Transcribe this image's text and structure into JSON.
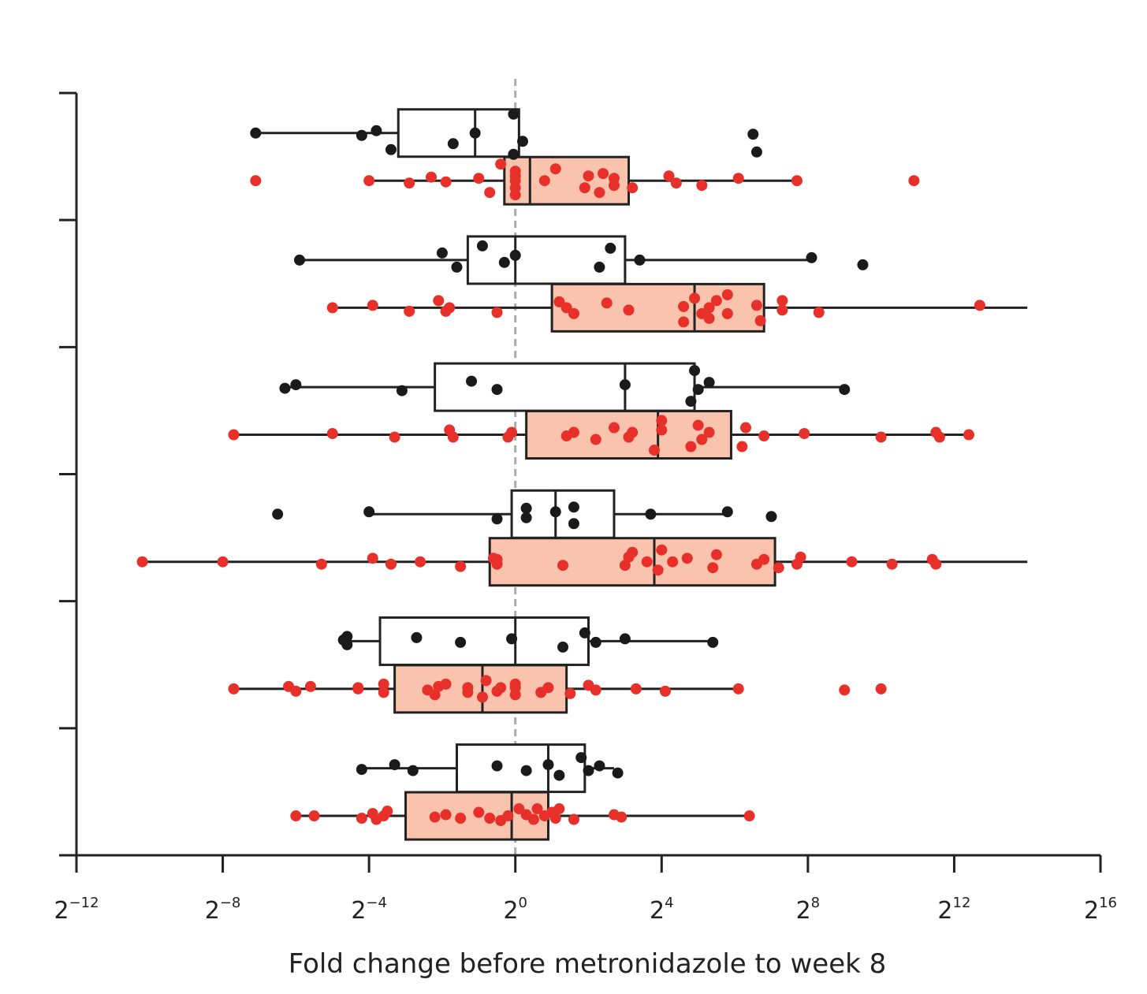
{
  "chart_data": {
    "type": "boxplot",
    "orientation": "horizontal",
    "title": "",
    "xlabel": "Fold change before metronidazole to week 8",
    "ylabel": "",
    "x_scale": "log2",
    "xlim_exp": [
      -12,
      16
    ],
    "x_ticks": [
      {
        "base": "2",
        "exp": "−12",
        "value_exp": -12
      },
      {
        "base": "2",
        "exp": "−8",
        "value_exp": -8
      },
      {
        "base": "2",
        "exp": "−4",
        "value_exp": -4
      },
      {
        "base": "2",
        "exp": "0",
        "value_exp": 0
      },
      {
        "base": "2",
        "exp": "4",
        "value_exp": 4
      },
      {
        "base": "2",
        "exp": "8",
        "value_exp": 8
      },
      {
        "base": "2",
        "exp": "12",
        "value_exp": 12
      },
      {
        "base": "2",
        "exp": "16",
        "value_exp": 16
      }
    ],
    "y_tick_count": 7,
    "reference_line_exp": 0,
    "colors": {
      "black_group": "#1a1a1a",
      "red_group": "#e8302a",
      "red_box_fill": "#f9c3ad",
      "ref_line": "#aaaaaa",
      "axis": "#222222"
    },
    "groups": [
      {
        "black": {
          "box": {
            "whisker_lo": -7.1,
            "q1": -3.2,
            "median": -1.1,
            "q3": 0.1,
            "whisker_hi": 0.1
          },
          "points": [
            [
              -7.1,
              0
            ],
            [
              -4.2,
              0.1
            ],
            [
              -3.8,
              -0.1
            ],
            [
              -3.4,
              0.7
            ],
            [
              -1.7,
              0.45
            ],
            [
              -1.1,
              0.0
            ],
            [
              -0.05,
              0.9
            ],
            [
              0.2,
              0.35
            ],
            [
              -0.05,
              -0.8
            ],
            [
              6.6,
              0.8
            ],
            [
              6.5,
              0.05
            ]
          ]
        },
        "red": {
          "box": {
            "whisker_lo": -4.0,
            "q1": -0.3,
            "median": 0.4,
            "q3": 3.1,
            "whisker_hi": 7.7
          },
          "points": [
            [
              -7.1,
              0
            ],
            [
              -4.0,
              0
            ],
            [
              -2.9,
              0.1
            ],
            [
              -2.3,
              -0.15
            ],
            [
              -1.9,
              0.05
            ],
            [
              -1.0,
              -0.1
            ],
            [
              -0.7,
              0.5
            ],
            [
              -0.4,
              -0.7
            ],
            [
              0,
              0.6
            ],
            [
              0,
              0.3
            ],
            [
              0,
              0.0
            ],
            [
              0,
              -0.2
            ],
            [
              0,
              -0.4
            ],
            [
              0.8,
              0.0
            ],
            [
              1.1,
              -0.5
            ],
            [
              1.9,
              0.3
            ],
            [
              2.0,
              -0.2
            ],
            [
              2.3,
              0.5
            ],
            [
              2.4,
              -0.3
            ],
            [
              2.7,
              -0.1
            ],
            [
              2.7,
              0.2
            ],
            [
              3.2,
              0.3
            ],
            [
              4.2,
              -0.2
            ],
            [
              4.4,
              0.1
            ],
            [
              5.1,
              0.2
            ],
            [
              6.1,
              -0.1
            ],
            [
              7.7,
              0.0
            ],
            [
              10.9,
              0.0
            ]
          ]
        }
      },
      {
        "black": {
          "box": {
            "whisker_lo": -5.9,
            "q1": -1.3,
            "median": 0,
            "q3": 3.0,
            "whisker_hi": 8.1
          },
          "points": [
            [
              -5.9,
              0
            ],
            [
              -2.0,
              -0.3
            ],
            [
              -1.6,
              0.3
            ],
            [
              -0.9,
              -0.6
            ],
            [
              -0.3,
              0.1
            ],
            [
              0.0,
              -0.2
            ],
            [
              2.3,
              0.3
            ],
            [
              2.6,
              -0.5
            ],
            [
              3.4,
              0.0
            ],
            [
              8.1,
              -0.1
            ],
            [
              9.5,
              0.2
            ]
          ]
        },
        "red": {
          "box": {
            "whisker_lo": -5.0,
            "q1": 1.0,
            "median": 4.9,
            "q3": 6.8,
            "whisker_hi": 14.0
          },
          "points": [
            [
              -5.0,
              0
            ],
            [
              -3.9,
              -0.1
            ],
            [
              -2.9,
              0.15
            ],
            [
              -2.1,
              -0.3
            ],
            [
              -1.8,
              0.0
            ],
            [
              -1.9,
              0.15
            ],
            [
              -0.5,
              0.2
            ],
            [
              1.2,
              -0.25
            ],
            [
              1.4,
              0.0
            ],
            [
              1.6,
              0.25
            ],
            [
              2.5,
              -0.2
            ],
            [
              3.1,
              0.1
            ],
            [
              4.6,
              0.6
            ],
            [
              4.6,
              -0.05
            ],
            [
              4.9,
              -0.4
            ],
            [
              5.1,
              0.25
            ],
            [
              5.3,
              0.0
            ],
            [
              5.5,
              -0.3
            ],
            [
              5.3,
              0.45
            ],
            [
              5.8,
              0.25
            ],
            [
              5.8,
              -0.55
            ],
            [
              6.7,
              0.55
            ],
            [
              6.6,
              -0.1
            ],
            [
              7.3,
              0.1
            ],
            [
              7.3,
              -0.3
            ],
            [
              8.3,
              0.2
            ],
            [
              12.7,
              -0.1
            ]
          ]
        }
      },
      {
        "black": {
          "box": {
            "whisker_lo": -6.3,
            "q1": -2.2,
            "median": 3.0,
            "q3": 4.9,
            "whisker_hi": 9.0
          },
          "points": [
            [
              -6.3,
              0.05
            ],
            [
              -6.0,
              -0.1
            ],
            [
              -3.1,
              0.15
            ],
            [
              -1.2,
              -0.25
            ],
            [
              -0.5,
              0.1
            ],
            [
              3.0,
              -0.1
            ],
            [
              4.8,
              0.6
            ],
            [
              5.0,
              0.1
            ],
            [
              5.3,
              -0.2
            ],
            [
              4.9,
              -0.7
            ],
            [
              9.0,
              0.1
            ]
          ]
        },
        "red": {
          "box": {
            "whisker_lo": -7.7,
            "q1": 0.3,
            "median": 3.9,
            "q3": 5.9,
            "whisker_hi": 12.4
          },
          "points": [
            [
              -7.7,
              0
            ],
            [
              -5.0,
              -0.05
            ],
            [
              -3.3,
              0.1
            ],
            [
              -1.7,
              0.1
            ],
            [
              -1.8,
              -0.2
            ],
            [
              -0.2,
              0.1
            ],
            [
              -0.1,
              -0.1
            ],
            [
              1.4,
              0.05
            ],
            [
              1.6,
              -0.1
            ],
            [
              2.2,
              0.2
            ],
            [
              2.7,
              -0.3
            ],
            [
              3.1,
              0.1
            ],
            [
              3.2,
              -0.1
            ],
            [
              3.8,
              0.65
            ],
            [
              4.0,
              -0.2
            ],
            [
              4.0,
              -0.6
            ],
            [
              4.8,
              0.5
            ],
            [
              5.1,
              0.2
            ],
            [
              5.3,
              -0.1
            ],
            [
              5.0,
              -0.4
            ],
            [
              6.2,
              0.5
            ],
            [
              6.8,
              0.05
            ],
            [
              6.3,
              -0.3
            ],
            [
              7.9,
              -0.05
            ],
            [
              10.0,
              0.1
            ],
            [
              11.5,
              -0.1
            ],
            [
              11.6,
              0.1
            ],
            [
              12.4,
              0.0
            ]
          ]
        }
      },
      {
        "black": {
          "box": {
            "whisker_lo": -4.0,
            "q1": -0.1,
            "median": 1.1,
            "q3": 2.7,
            "whisker_hi": 5.8
          },
          "points": [
            [
              -6.5,
              0
            ],
            [
              -4.0,
              -0.1
            ],
            [
              -0.5,
              0.2
            ],
            [
              0.3,
              -0.25
            ],
            [
              0.3,
              0.15
            ],
            [
              1.1,
              -0.1
            ],
            [
              1.6,
              0.4
            ],
            [
              1.6,
              -0.3
            ],
            [
              3.7,
              0.0
            ],
            [
              5.8,
              -0.1
            ],
            [
              7.0,
              0.1
            ]
          ]
        },
        "red": {
          "box": {
            "whisker_lo": -10.2,
            "q1": -0.7,
            "median": 3.8,
            "q3": 7.1,
            "whisker_hi": 14.0
          },
          "points": [
            [
              -10.2,
              0
            ],
            [
              -8.0,
              0
            ],
            [
              -5.3,
              0.1
            ],
            [
              -3.9,
              -0.15
            ],
            [
              -3.4,
              0.1
            ],
            [
              -2.6,
              0.0
            ],
            [
              -1.5,
              0.2
            ],
            [
              -0.5,
              0.1
            ],
            [
              -0.5,
              -0.1
            ],
            [
              -0.6,
              -0.15
            ],
            [
              1.3,
              0.15
            ],
            [
              3.0,
              0.15
            ],
            [
              3.1,
              -0.2
            ],
            [
              3.2,
              -0.4
            ],
            [
              3.6,
              0.0
            ],
            [
              3.9,
              0.35
            ],
            [
              4.0,
              -0.5
            ],
            [
              4.3,
              0.0
            ],
            [
              4.7,
              -0.15
            ],
            [
              5.4,
              0.25
            ],
            [
              5.5,
              -0.3
            ],
            [
              6.6,
              0.1
            ],
            [
              6.8,
              -0.1
            ],
            [
              7.2,
              0.25
            ],
            [
              7.7,
              0.1
            ],
            [
              7.8,
              -0.2
            ],
            [
              9.2,
              0.0
            ],
            [
              10.3,
              0.1
            ],
            [
              11.4,
              -0.1
            ],
            [
              11.5,
              0.1
            ]
          ]
        }
      },
      {
        "black": {
          "box": {
            "whisker_lo": -4.6,
            "q1": -3.7,
            "median": 0,
            "q3": 2.0,
            "whisker_hi": 5.4
          },
          "points": [
            [
              -4.6,
              0.15
            ],
            [
              -4.7,
              -0.05
            ],
            [
              -4.6,
              -0.2
            ],
            [
              -2.7,
              -0.15
            ],
            [
              -1.5,
              0.05
            ],
            [
              -0.1,
              -0.1
            ],
            [
              1.3,
              0.25
            ],
            [
              2.2,
              0.05
            ],
            [
              1.9,
              -0.35
            ],
            [
              3.0,
              -0.1
            ],
            [
              5.4,
              0.05
            ]
          ]
        },
        "red": {
          "box": {
            "whisker_lo": -7.7,
            "q1": -3.3,
            "median": -0.9,
            "q3": 1.4,
            "whisker_hi": 6.1
          },
          "points": [
            [
              -7.7,
              0.0
            ],
            [
              -6.2,
              -0.1
            ],
            [
              -6.0,
              0.1
            ],
            [
              -5.6,
              -0.1
            ],
            [
              -4.3,
              0.0
            ],
            [
              -4.3,
              -0.05
            ],
            [
              -3.6,
              0.15
            ],
            [
              -3.6,
              -0.2
            ],
            [
              -2.2,
              0.25
            ],
            [
              -2.4,
              0.05
            ],
            [
              -2.1,
              -0.1
            ],
            [
              -1.9,
              -0.2
            ],
            [
              -1.3,
              0.15
            ],
            [
              -1.3,
              -0.05
            ],
            [
              -0.9,
              0.35
            ],
            [
              -0.8,
              -0.35
            ],
            [
              -0.5,
              0.1
            ],
            [
              -0.4,
              -0.05
            ],
            [
              0,
              0.25
            ],
            [
              0,
              -0.05
            ],
            [
              0,
              -0.2
            ],
            [
              0.7,
              0.15
            ],
            [
              0.9,
              -0.05
            ],
            [
              1.5,
              0.2
            ],
            [
              2.0,
              -0.15
            ],
            [
              2.2,
              0.05
            ],
            [
              3.3,
              0.0
            ],
            [
              4.1,
              0.1
            ],
            [
              6.1,
              0.0
            ],
            [
              9.0,
              0.05
            ],
            [
              10.0,
              0.0
            ]
          ]
        }
      },
      {
        "black": {
          "box": {
            "whisker_lo": -4.2,
            "q1": -1.6,
            "median": 0.9,
            "q3": 1.9,
            "whisker_hi": 2.7
          },
          "points": [
            [
              -4.2,
              0.05
            ],
            [
              -3.3,
              -0.15
            ],
            [
              -2.8,
              0.1
            ],
            [
              -0.5,
              -0.1
            ],
            [
              0.3,
              0.1
            ],
            [
              0.9,
              -0.15
            ],
            [
              1.2,
              0.3
            ],
            [
              2.0,
              0.1
            ],
            [
              2.3,
              -0.1
            ],
            [
              1.8,
              -0.45
            ],
            [
              2.8,
              0.2
            ]
          ]
        },
        "red": {
          "box": {
            "whisker_lo": -6.0,
            "q1": -3.0,
            "median": -0.1,
            "q3": 0.9,
            "whisker_hi": 6.4
          },
          "points": [
            [
              -6.0,
              0.0
            ],
            [
              -5.5,
              0.0
            ],
            [
              -4.2,
              0.1
            ],
            [
              -3.9,
              -0.1
            ],
            [
              -3.8,
              0.15
            ],
            [
              -3.6,
              0.0
            ],
            [
              -3.5,
              -0.2
            ],
            [
              -2.2,
              0.05
            ],
            [
              -1.9,
              -0.05
            ],
            [
              -1.5,
              0.1
            ],
            [
              -1.0,
              -0.15
            ],
            [
              -0.7,
              0.1
            ],
            [
              -0.4,
              0.2
            ],
            [
              -0.2,
              0.0
            ],
            [
              0.1,
              -0.3
            ],
            [
              0.3,
              -0.05
            ],
            [
              0.5,
              0.15
            ],
            [
              0.6,
              -0.3
            ],
            [
              0.8,
              0.0
            ],
            [
              1.0,
              -0.15
            ],
            [
              1.1,
              0.1
            ],
            [
              1.2,
              -0.3
            ],
            [
              1.6,
              0.15
            ],
            [
              2.7,
              -0.05
            ],
            [
              2.9,
              0.05
            ],
            [
              6.4,
              0.0
            ]
          ]
        }
      }
    ]
  }
}
